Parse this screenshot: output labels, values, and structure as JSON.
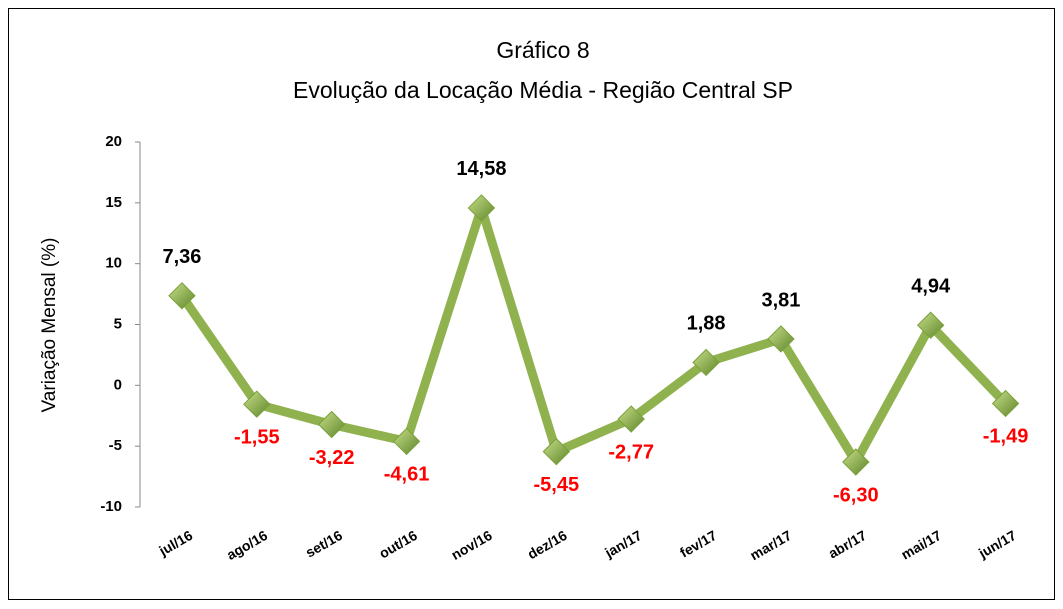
{
  "chart_data": {
    "type": "line",
    "title": "Gráfico 8",
    "subtitle": "Evolução da Locação Média - Região Central SP",
    "y_label": "Variação Mensal (%)",
    "categories": [
      "jul/16",
      "ago/16",
      "set/16",
      "out/16",
      "nov/16",
      "dez/16",
      "jan/17",
      "fev/17",
      "mar/17",
      "abr/17",
      "mai/17",
      "jun/17"
    ],
    "values": [
      7.36,
      -1.55,
      -3.22,
      -4.61,
      14.58,
      -5.45,
      -2.77,
      1.88,
      3.81,
      -6.3,
      4.94,
      -1.49
    ],
    "value_labels": [
      "7,36",
      "-1,55",
      "-3,22",
      "-4,61",
      "14,58",
      "-5,45",
      "-2,77",
      "1,88",
      "3,81",
      "-6,30",
      "4,94",
      "-1,49"
    ],
    "color": "#8fb24f",
    "marker_color": "#7aa03a",
    "negative_label_color": "#ff0000",
    "ylim": [
      -10,
      20
    ],
    "yticks": [
      -10,
      -5,
      0,
      5,
      10,
      15,
      20
    ],
    "grid": false
  }
}
